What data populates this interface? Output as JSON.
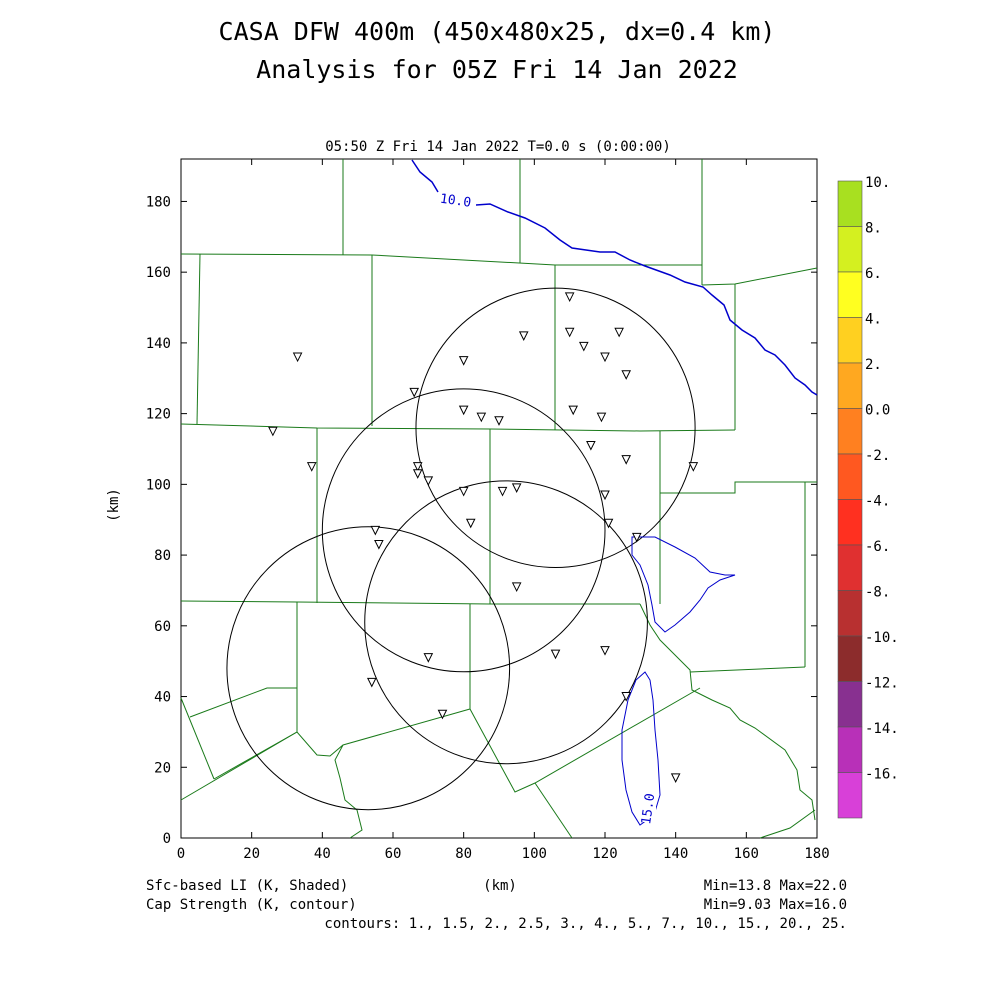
{
  "header": {
    "line1": "CASA DFW 400m (450x480x25, dx=0.4 km)",
    "line2": "Analysis for 05Z Fri 14 Jan 2022"
  },
  "subtitle": "05:50 Z Fri 14 Jan 2022   T=0.0 s (0:00:00)",
  "axes": {
    "x_ticks": [
      "0",
      "20",
      "40",
      "60",
      "80",
      "100",
      "120",
      "140",
      "160",
      "180"
    ],
    "y_ticks": [
      "0",
      "20",
      "40",
      "60",
      "80",
      "100",
      "120",
      "140",
      "160",
      "180"
    ],
    "xlabel": "(km)",
    "ylabel": "(km)",
    "xlim": [
      0,
      180
    ],
    "ylim": [
      0,
      192
    ]
  },
  "footer": {
    "left1": "Sfc-based LI (K, Shaded)",
    "left2": "Cap Strength (K, contour)",
    "right1": "Min=13.8 Max=22.0",
    "right2": "Min=9.03 Max=16.0",
    "contours": "contours: 1., 1.5, 2., 2.5, 3., 4., 5., 7., 10., 15., 20., 25."
  },
  "colorbar": {
    "labels": [
      "10.",
      "8.",
      "6.",
      "4.",
      "2.",
      "0.0",
      "-2.",
      "-4.",
      "-6.",
      "-8.",
      "-10.",
      "-12.",
      "-14.",
      "-16."
    ],
    "colors": [
      "#a8e020",
      "#d4f020",
      "#ffff20",
      "#ffd020",
      "#ffa820",
      "#ff8020",
      "#ff5820",
      "#ff3020",
      "#e03030",
      "#b83030",
      "#8c2c2c",
      "#883090",
      "#b830b8",
      "#d840d8"
    ]
  },
  "contour_labels": {
    "c10": "10.0",
    "c15": "15.0"
  },
  "radars": [
    {
      "cx": 106,
      "cy": 116,
      "r": 39.5
    },
    {
      "cx": 80,
      "cy": 87,
      "r": 40
    },
    {
      "cx": 92,
      "cy": 61,
      "r": 40
    },
    {
      "cx": 53,
      "cy": 48,
      "r": 40
    }
  ],
  "stations": [
    [
      110,
      153
    ],
    [
      97,
      142
    ],
    [
      110,
      143
    ],
    [
      114,
      139
    ],
    [
      124,
      143
    ],
    [
      120,
      136
    ],
    [
      126,
      131
    ],
    [
      80,
      135
    ],
    [
      66,
      126
    ],
    [
      33,
      136
    ],
    [
      80,
      121
    ],
    [
      85,
      119
    ],
    [
      90,
      118
    ],
    [
      111,
      121
    ],
    [
      119,
      119
    ],
    [
      26,
      115
    ],
    [
      37,
      105
    ],
    [
      67,
      105
    ],
    [
      67,
      103
    ],
    [
      70,
      101
    ],
    [
      116,
      111
    ],
    [
      126,
      107
    ],
    [
      145,
      105
    ],
    [
      80,
      98
    ],
    [
      91,
      98
    ],
    [
      95,
      99
    ],
    [
      120,
      97
    ],
    [
      55,
      87
    ],
    [
      56,
      83
    ],
    [
      82,
      89
    ],
    [
      121,
      89
    ],
    [
      129,
      85
    ],
    [
      95,
      71
    ],
    [
      70,
      51
    ],
    [
      106,
      52
    ],
    [
      120,
      53
    ],
    [
      54,
      44
    ],
    [
      74,
      35
    ],
    [
      126,
      40
    ],
    [
      140,
      17
    ]
  ]
}
